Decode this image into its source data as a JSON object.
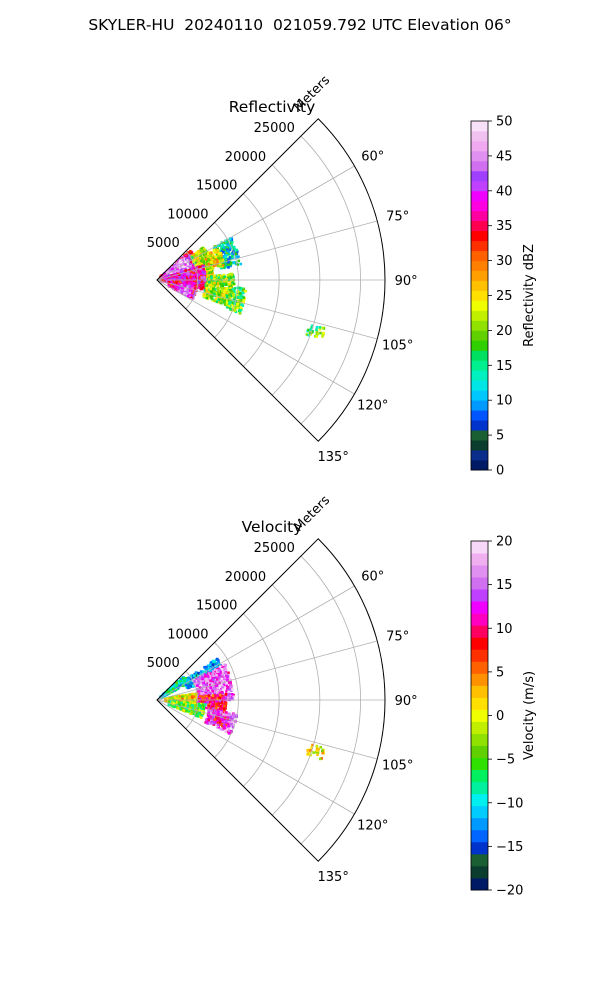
{
  "suptitle": "SKYLER-HU  20240110  021059.792 UTC Elevation 06°",
  "chart_data": [
    {
      "type": "heatmap",
      "subtype": "polar-sector-ppi",
      "title": "Reflectivity",
      "radial_axis_label": "Meters",
      "range_ticks": [
        5000,
        10000,
        15000,
        20000,
        25000
      ],
      "range_tick_labels": [
        "5000",
        "10000",
        "15000",
        "20000",
        "25000"
      ],
      "range_max": 28000,
      "azimuth_range": [
        45,
        135
      ],
      "azimuth_ticks": [
        60,
        75,
        90,
        105,
        120,
        135
      ],
      "azimuth_tick_labels": [
        "60°",
        "75°",
        "90°",
        "105°",
        "120°",
        "135°"
      ],
      "grid": true,
      "colorbar": {
        "label": "Reflectivity dBZ",
        "min": 0,
        "max": 50,
        "ticks": [
          0,
          5,
          10,
          15,
          20,
          25,
          30,
          35,
          40,
          45,
          50
        ],
        "tick_labels": [
          "0",
          "5",
          "10",
          "15",
          "20",
          "25",
          "30",
          "35",
          "40",
          "45",
          "50"
        ],
        "colors": [
          "#001a66",
          "#0a2d8c",
          "#0a3d2e",
          "#1a5e34",
          "#0033cc",
          "#0055ff",
          "#0099ff",
          "#00c8ff",
          "#00e6e6",
          "#00f0c0",
          "#00f090",
          "#00e060",
          "#30d000",
          "#60d000",
          "#90e000",
          "#c0f000",
          "#f0ff00",
          "#ffe000",
          "#ffc000",
          "#ffa000",
          "#ff8000",
          "#ff6000",
          "#ff3000",
          "#ff0000",
          "#ff0050",
          "#ff00a0",
          "#ff00e0",
          "#f000ff",
          "#c040ff",
          "#a040ff",
          "#d070f0",
          "#e090f0",
          "#f0a8f0",
          "#f0c0f0",
          "#f8e0f8"
        ]
      },
      "echo_regions": [
        {
          "az": [
            48,
            72
          ],
          "range": [
            500,
            5500
          ],
          "value": 37
        },
        {
          "az": [
            50,
            70
          ],
          "range": [
            1500,
            4500
          ],
          "value": 45
        },
        {
          "az": [
            55,
            95
          ],
          "range": [
            5000,
            7000
          ],
          "value": 22
        },
        {
          "az": [
            60,
            80
          ],
          "range": [
            8000,
            10500
          ],
          "value": 13
        },
        {
          "az": [
            62,
            78
          ],
          "range": [
            6500,
            8500
          ],
          "value": 24
        },
        {
          "az": [
            72,
            102
          ],
          "range": [
            500,
            6000
          ],
          "value": 38
        },
        {
          "az": [
            95,
            118
          ],
          "range": [
            1500,
            5000
          ],
          "value": 36
        },
        {
          "az": [
            100,
            118
          ],
          "range": [
            3000,
            4500
          ],
          "value": 42
        },
        {
          "az": [
            85,
            110
          ],
          "range": [
            6000,
            9500
          ],
          "value": 21
        },
        {
          "az": [
            95,
            112
          ],
          "range": [
            9000,
            11000
          ],
          "value": 19
        },
        {
          "az": [
            106,
            110
          ],
          "range": [
            19500,
            21500
          ],
          "value": 18
        }
      ]
    },
    {
      "type": "heatmap",
      "subtype": "polar-sector-ppi",
      "title": "Velocity",
      "radial_axis_label": "Meters",
      "range_ticks": [
        5000,
        10000,
        15000,
        20000,
        25000
      ],
      "range_tick_labels": [
        "5000",
        "10000",
        "15000",
        "20000",
        "25000"
      ],
      "range_max": 28000,
      "azimuth_range": [
        45,
        135
      ],
      "azimuth_ticks": [
        60,
        75,
        90,
        105,
        120,
        135
      ],
      "azimuth_tick_labels": [
        "60°",
        "75°",
        "90°",
        "105°",
        "120°",
        "135°"
      ],
      "grid": true,
      "colorbar": {
        "label": "Velocity (m/s)",
        "min": -20,
        "max": 20,
        "ticks": [
          -20,
          -15,
          -10,
          -5,
          0,
          5,
          10,
          15,
          20
        ],
        "tick_labels": [
          "−20",
          "−15",
          "−10",
          "−5",
          "0",
          "5",
          "10",
          "15",
          "20"
        ],
        "colors": [
          "#001a66",
          "#0a3d2e",
          "#1a5e34",
          "#0033cc",
          "#0066ff",
          "#0099ff",
          "#00ccff",
          "#00f0f0",
          "#00f0a0",
          "#00f060",
          "#30e000",
          "#60d000",
          "#90e000",
          "#c0f000",
          "#f0ff00",
          "#ffe000",
          "#ffc000",
          "#ff9000",
          "#ff6000",
          "#ff3000",
          "#ff0000",
          "#ff0060",
          "#ff00c0",
          "#f000ff",
          "#c040ff",
          "#d070f0",
          "#e090f0",
          "#f0b0f0",
          "#f8d8f8"
        ]
      },
      "echo_regions": [
        {
          "az": [
            48,
            62
          ],
          "range": [
            500,
            4500
          ],
          "value": -9
        },
        {
          "az": [
            55,
            70
          ],
          "range": [
            4000,
            9000
          ],
          "value": -12
        },
        {
          "az": [
            62,
            90
          ],
          "range": [
            5000,
            9500
          ],
          "value": 15
        },
        {
          "az": [
            80,
            98
          ],
          "range": [
            1000,
            5000
          ],
          "value": 1
        },
        {
          "az": [
            85,
            100
          ],
          "range": [
            5000,
            8500
          ],
          "value": 9
        },
        {
          "az": [
            95,
            112
          ],
          "range": [
            1500,
            6000
          ],
          "value": -4
        },
        {
          "az": [
            100,
            115
          ],
          "range": [
            6500,
            10000
          ],
          "value": 14
        },
        {
          "az": [
            104,
            112
          ],
          "range": [
            7500,
            9000
          ],
          "value": 10
        },
        {
          "az": [
            106,
            110
          ],
          "range": [
            19500,
            21500
          ],
          "value": 1
        }
      ]
    }
  ]
}
